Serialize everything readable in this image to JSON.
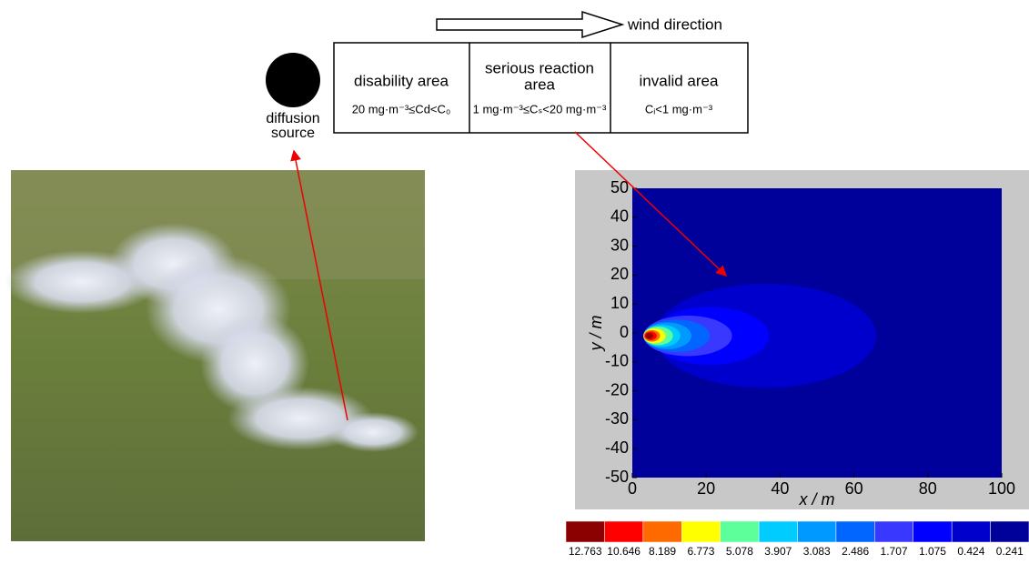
{
  "wind_label": "wind direction",
  "source": {
    "label": [
      "diffusion",
      "source"
    ]
  },
  "zones": [
    {
      "title": [
        "disability area"
      ],
      "condition": "20 mg·m⁻³≤Cd<C₀"
    },
    {
      "title": [
        "serious reaction",
        "area"
      ],
      "condition": "1 mg·m⁻³≤Cₛ<20 mg·m⁻³"
    },
    {
      "title": [
        "invalid area"
      ],
      "condition": "Cᵢ<1 mg·m⁻³"
    }
  ],
  "contour_plot": {
    "xlabel": "x / m",
    "ylabel": "y / m",
    "xlim": [
      0,
      100
    ],
    "ylim": [
      -50,
      50
    ],
    "xticks": [
      0,
      20,
      40,
      60,
      80,
      100
    ],
    "yticks": [
      50,
      40,
      30,
      20,
      10,
      0,
      -10,
      -20,
      -30,
      -40,
      -50
    ],
    "colorbar": {
      "levels": [
        12.763,
        10.646,
        8.189,
        6.773,
        5.078,
        3.907,
        3.083,
        2.486,
        1.707,
        1.075,
        0.424,
        0.241
      ],
      "colors": [
        "#8b0000",
        "#ff0000",
        "#ff6a00",
        "#ffff00",
        "#5cff9a",
        "#00ccff",
        "#0099ff",
        "#0066ff",
        "#3838ff",
        "#0000ff",
        "#0000cc",
        "#00009a"
      ]
    }
  }
}
